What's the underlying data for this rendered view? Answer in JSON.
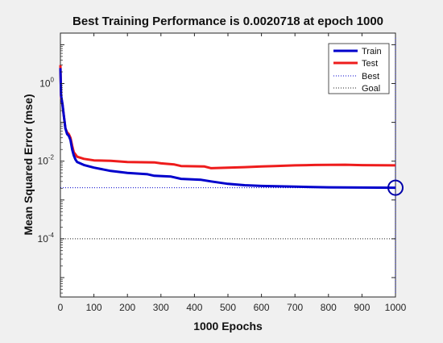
{
  "chart_data": {
    "type": "line",
    "title": "Best Training Performance is 0.0020718 at epoch 1000",
    "xlabel": "1000 Epochs",
    "ylabel": "Mean Squared Error  (mse)",
    "xlim": [
      0,
      1000
    ],
    "ylim_log10": [
      -5.5,
      1.3
    ],
    "y_scale": "log",
    "grid": false,
    "legend_position": "top-right",
    "x_ticks": [
      0,
      100,
      200,
      300,
      400,
      500,
      600,
      700,
      800,
      900,
      1000
    ],
    "y_ticks": [
      {
        "base": "10",
        "exp": "0",
        "value": 1
      },
      {
        "base": "10",
        "exp": "-2",
        "value": 0.01
      },
      {
        "base": "10",
        "exp": "-4",
        "value": 0.0001
      }
    ],
    "series": [
      {
        "name": "Train",
        "color": "#0000cc",
        "style": "solid",
        "points": [
          [
            0,
            2.5
          ],
          [
            2,
            0.5
          ],
          [
            6,
            0.3
          ],
          [
            10,
            0.15
          ],
          [
            15,
            0.07
          ],
          [
            20,
            0.05
          ],
          [
            25,
            0.045
          ],
          [
            30,
            0.035
          ],
          [
            35,
            0.02
          ],
          [
            40,
            0.014
          ],
          [
            45,
            0.011
          ],
          [
            50,
            0.0095
          ],
          [
            70,
            0.008
          ],
          [
            100,
            0.0068
          ],
          [
            150,
            0.0056
          ],
          [
            200,
            0.005
          ],
          [
            260,
            0.0046
          ],
          [
            280,
            0.0042
          ],
          [
            330,
            0.004
          ],
          [
            360,
            0.0035
          ],
          [
            420,
            0.0033
          ],
          [
            450,
            0.003
          ],
          [
            500,
            0.0026
          ],
          [
            550,
            0.0024
          ],
          [
            600,
            0.0023
          ],
          [
            700,
            0.0022
          ],
          [
            800,
            0.00212
          ],
          [
            900,
            0.00209
          ],
          [
            1000,
            0.0020718
          ]
        ]
      },
      {
        "name": "Test",
        "color": "#ee1c1c",
        "style": "solid",
        "points": [
          [
            0,
            3.0
          ],
          [
            2,
            0.45
          ],
          [
            6,
            0.3
          ],
          [
            10,
            0.15
          ],
          [
            15,
            0.07
          ],
          [
            20,
            0.055
          ],
          [
            25,
            0.05
          ],
          [
            30,
            0.04
          ],
          [
            35,
            0.025
          ],
          [
            40,
            0.017
          ],
          [
            50,
            0.013
          ],
          [
            70,
            0.0115
          ],
          [
            100,
            0.0105
          ],
          [
            150,
            0.0102
          ],
          [
            200,
            0.0095
          ],
          [
            280,
            0.0093
          ],
          [
            300,
            0.0088
          ],
          [
            340,
            0.0082
          ],
          [
            360,
            0.0075
          ],
          [
            430,
            0.0073
          ],
          [
            450,
            0.0066
          ],
          [
            500,
            0.0068
          ],
          [
            550,
            0.007
          ],
          [
            600,
            0.0073
          ],
          [
            640,
            0.0075
          ],
          [
            700,
            0.0078
          ],
          [
            760,
            0.008
          ],
          [
            850,
            0.0081
          ],
          [
            900,
            0.0079
          ],
          [
            1000,
            0.0078
          ]
        ]
      },
      {
        "name": "Best",
        "color": "#0000cc",
        "style": "dotted",
        "y": 0.0020718
      },
      {
        "name": "Goal",
        "color": "#222222",
        "style": "dotted",
        "y": 0.0001
      }
    ],
    "best_marker": {
      "x": 1000,
      "y": 0.0020718,
      "color": "#0000aa"
    }
  }
}
